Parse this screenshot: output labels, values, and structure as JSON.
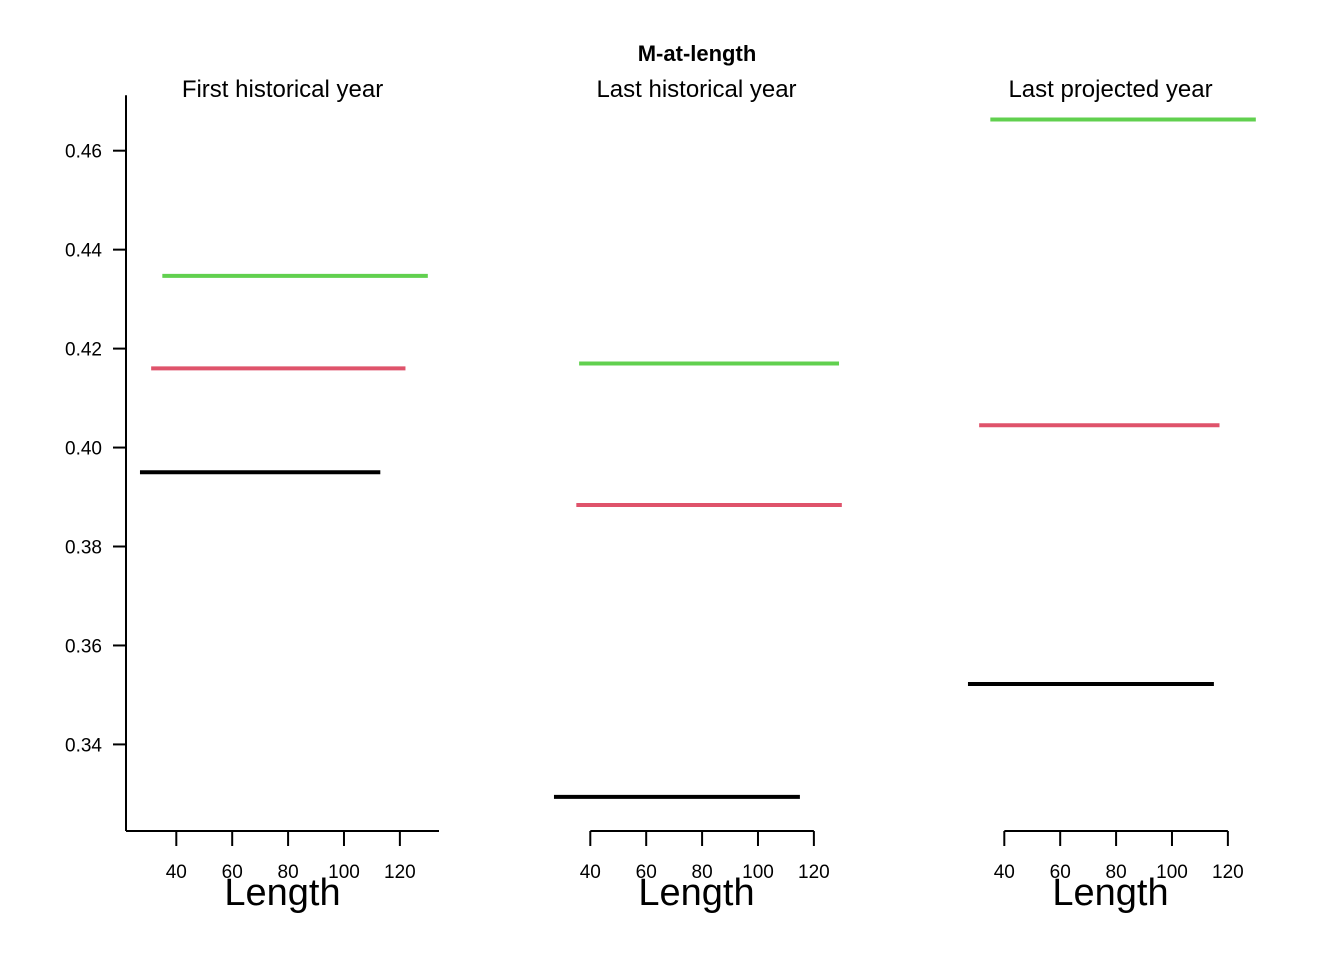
{
  "chart_data": {
    "type": "line",
    "title": "M-at-length",
    "ylim": [
      0.3225,
      0.4755
    ],
    "y_ticks": [
      0.34,
      0.36,
      0.38,
      0.4,
      0.42,
      0.44,
      0.46
    ],
    "y_tick_labels": [
      "0.34",
      "0.36",
      "0.38",
      "0.40",
      "0.42",
      "0.44",
      "0.46"
    ],
    "x_ticks": [
      40,
      60,
      80,
      100,
      120
    ],
    "x_tick_labels": [
      "40",
      "60",
      "80",
      "100",
      "120"
    ],
    "xlabel": "Length",
    "series_colors": [
      "#000000",
      "#DF536B",
      "#61D04F"
    ],
    "panels": [
      {
        "title": "First historical year",
        "x_axis_drawn": false,
        "lines": [
          {
            "color": "#000000",
            "x": [
              27,
              113
            ],
            "y": 0.395
          },
          {
            "color": "#DF536B",
            "x": [
              31,
              122
            ],
            "y": 0.416
          },
          {
            "color": "#61D04F",
            "x": [
              35,
              130
            ],
            "y": 0.4347
          }
        ]
      },
      {
        "title": "Last historical year",
        "x_axis_drawn": true,
        "lines": [
          {
            "color": "#000000",
            "x": [
              27,
              115
            ],
            "y": 0.3294
          },
          {
            "color": "#DF536B",
            "x": [
              35,
              130
            ],
            "y": 0.3884
          },
          {
            "color": "#61D04F",
            "x": [
              36,
              129
            ],
            "y": 0.417
          }
        ]
      },
      {
        "title": "Last projected year",
        "x_axis_drawn": true,
        "lines": [
          {
            "color": "#000000",
            "x": [
              27,
              115
            ],
            "y": 0.3522
          },
          {
            "color": "#DF536B",
            "x": [
              31,
              117
            ],
            "y": 0.4045
          },
          {
            "color": "#61D04F",
            "x": [
              35,
              130
            ],
            "y": 0.4663
          }
        ]
      }
    ]
  }
}
